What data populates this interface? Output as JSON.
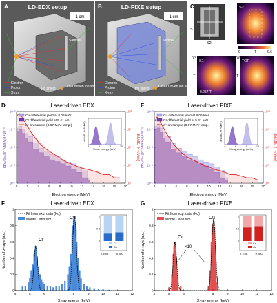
{
  "panels": {
    "A": {
      "letter": "A",
      "title": "LD-EDX setup",
      "scale_label": "1 cm",
      "labels": {
        "sample": "Sample",
        "shield": "Pb shield"
      },
      "legend": [
        "Electron",
        "Proton",
        "X-ray",
        "Laser driven ion source"
      ]
    },
    "B": {
      "letter": "B",
      "title": "LD-PIXE setup",
      "scale_label": "1 cm",
      "labels": {
        "sample": "Sample",
        "shield": "Pb shield"
      },
      "legend": [
        "Electron",
        "Proton",
        "X-ray",
        "Laser Driven ion source"
      ]
    },
    "C": {
      "letter": "C",
      "labels": {
        "s1": "S1",
        "s2": "S2",
        "s1_map": "S1",
        "top": "TOP",
        "t": "T"
      },
      "colorbar_ticks": [
        "0",
        "0.6"
      ],
      "s1_range": "0.257 T",
      "s1_axis": [
        "0.3",
        "T"
      ],
      "top_axis": [
        "0.6",
        "T"
      ]
    },
    "D": {
      "letter": "D",
      "title": "Laser-driven EDX",
      "legend": [
        "Cu differential yield at 8.05 keV",
        "Cr differential yield at 5.41 keV",
        "e⁻ on sample (0.67-MeV temp.)"
      ],
      "inset_xlabel": "X-ray energy (keV)",
      "inset_ylabel": "dNᵧ/dEₑ (h⁻¹/MeV)"
    },
    "E": {
      "letter": "E",
      "title": "Laser-driven PIXE",
      "legend": [
        "Cu differential yield at 8.05 keV",
        "Cr differential yield at 5.41 keV",
        "e⁻ on sample (0.67-MeV temp.)"
      ],
      "inset_xlabel": "X-ray energy (keV)",
      "inset_ylabel": "dNᵧ/dEₑ (h⁻¹/MeV)"
    },
    "F": {
      "letter": "F",
      "title": "Laser-driven EDX",
      "legend": [
        "Fit from exp. data (Kα)",
        "Monte Carlo sim."
      ],
      "peak_labels": [
        "Cr",
        "Cu"
      ],
      "inset_bar_labels": [
        "Cr",
        "Cu"
      ],
      "inset_ticks": [
        "p. Exp.",
        "p. MC"
      ]
    },
    "G": {
      "letter": "G",
      "title": "Laser-driven PIXE",
      "legend": [
        "Fit from exp. data (Kα)",
        "Monte Carlo sim."
      ],
      "peak_labels": [
        "Cr",
        "Cu"
      ],
      "factor": "×10",
      "inset_bar_labels": [
        "Cr",
        "Cu"
      ],
      "inset_ticks": [
        "p. Exp.",
        "p. MC"
      ]
    }
  },
  "chart_data": [
    {
      "id": "D",
      "type": "line",
      "title": "Laser-driven EDX",
      "xlabel": "Electron energy (MeV)",
      "ylabel_left": "(dNₓ/dEₑ)(h⁻¹/MeV) (×10⁻³)",
      "ylabel_right": "dNₑ/dEₑ (h⁻¹/MeV)",
      "xlim": [
        0,
        20
      ],
      "ylim_left": [
        1e-07,
        0.001
      ],
      "ylim_right": [
        1000000.0,
        10000000000.0
      ],
      "yscale": "log",
      "xticks": [
        "0",
        "2",
        "4",
        "6",
        "8",
        "10",
        "12",
        "14",
        "16",
        "18",
        "20"
      ],
      "yticks_left": [
        "10⁻⁷",
        "10⁻⁶",
        "10⁻⁵",
        "10⁻⁴",
        "10⁻³"
      ],
      "yticks_right": [
        "10⁶",
        "10⁷",
        "10⁸",
        "10⁹",
        "10¹⁰"
      ],
      "series": [
        {
          "name": "Cu differential yield at 8.05 keV",
          "color": "#a8a4e6",
          "x": [
            0.1,
            0.5,
            1,
            1.5,
            2,
            3,
            4,
            5,
            6,
            7,
            8,
            9,
            10,
            11,
            12,
            13
          ],
          "y": [
            0.00012,
            0.00015,
            0.0001,
            6e-05,
            4e-05,
            1.6e-05,
            9e-06,
            6e-06,
            4e-06,
            3e-06,
            2e-06,
            1.5e-06,
            1.2e-06,
            8e-07,
            5e-07,
            2e-07
          ]
        },
        {
          "name": "Cr differential yield at 5.41 keV",
          "color": "#6a3fb5",
          "x": [
            0.1,
            0.5,
            1,
            1.5,
            2,
            3,
            4,
            5,
            6,
            7,
            8,
            9,
            10,
            11,
            12,
            13
          ],
          "y": [
            8e-05,
            0.0001,
            6e-05,
            3e-05,
            2e-05,
            8e-06,
            5e-06,
            3e-06,
            2e-06,
            1.6e-06,
            1.2e-06,
            9e-07,
            6e-07,
            4e-07,
            2e-07,
            1.5e-07
          ]
        },
        {
          "name": "e⁻ on sample (0.67-MeV temp.)",
          "color": "#e02020",
          "x": [
            0.1,
            0.5,
            1,
            2,
            3,
            4,
            5,
            6,
            7,
            8,
            9,
            10,
            11,
            12,
            13,
            14,
            15,
            16,
            17,
            18,
            19
          ],
          "y": [
            6000000000.0,
            8000000000.0,
            5000000000.0,
            1500000000.0,
            500000000.0,
            200000000.0,
            100000000.0,
            60000000.0,
            40000000.0,
            25000000.0,
            16000000.0,
            12000000.0,
            9000000.0,
            7000000.0,
            6000000.0,
            5000000.0,
            4000000.0,
            3000000.0,
            3000000.0,
            2000000.0,
            2000000.0
          ]
        }
      ],
      "inset": {
        "xlim": [
          4,
          10
        ],
        "xticks": [
          "4",
          "6",
          "8",
          "10"
        ],
        "peaks_kev": [
          5.41,
          8.05
        ]
      }
    },
    {
      "id": "E",
      "type": "line",
      "title": "Laser-driven PIXE",
      "xlabel": "Electron energy (MeV)",
      "ylabel_left": "(dNₓ/dEₑ)(h⁻¹/MeV) (×10⁻³)",
      "ylabel_right": "dNₑ/dEₑ (h⁻¹/MeV)",
      "xlim": [
        0,
        20
      ],
      "ylim_left": [
        1e-07,
        0.001
      ],
      "ylim_right": [
        1000000.0,
        10000000000.0
      ],
      "yscale": "log",
      "xticks": [
        "0",
        "2",
        "4",
        "6",
        "8",
        "10",
        "12",
        "14",
        "16",
        "18",
        "20"
      ],
      "yticks_left": [
        "10⁻⁷",
        "10⁻⁶",
        "10⁻⁵",
        "10⁻⁴",
        "10⁻³"
      ],
      "yticks_right": [
        "10⁶",
        "10⁷",
        "10⁸",
        "10⁹",
        "10¹⁰"
      ],
      "series": [
        {
          "name": "Cu differential yield at 8.05 keV",
          "color": "#a8a4e6",
          "x": [
            0.1,
            0.5,
            1,
            1.5,
            2,
            3,
            4,
            5,
            6,
            7,
            8,
            9,
            10,
            11,
            12,
            13
          ],
          "y": [
            0.00015,
            0.0002,
            0.00012,
            7e-05,
            4e-05,
            1.6e-05,
            9e-06,
            6e-06,
            4e-06,
            3e-06,
            2e-06,
            1.5e-06,
            1.2e-06,
            8e-07,
            5e-07,
            2e-07
          ]
        },
        {
          "name": "Cr differential yield at 5.41 keV",
          "color": "#6a3fb5",
          "x": [
            0.1,
            0.5,
            1,
            1.5,
            2,
            3,
            4,
            5,
            6,
            7,
            8,
            9,
            10,
            11,
            12,
            13
          ],
          "y": [
            0.0001,
            0.00012,
            7e-05,
            3e-05,
            2e-05,
            8e-06,
            5e-06,
            3e-06,
            2e-06,
            1.6e-06,
            1.2e-06,
            9e-07,
            6e-07,
            4e-07,
            2e-07,
            1.5e-07
          ]
        },
        {
          "name": "e⁻ on sample (0.67-MeV temp.)",
          "color": "#e02020",
          "x": [
            0.1,
            0.5,
            1,
            2,
            3,
            4,
            5,
            6,
            7,
            8,
            9,
            10,
            11,
            12,
            13,
            14,
            15,
            16,
            17,
            18,
            19
          ],
          "y": [
            3000000000.0,
            5000000000.0,
            3000000000.0,
            800000000.0,
            250000000.0,
            100000000.0,
            50000000.0,
            30000000.0,
            20000000.0,
            15000000.0,
            10000000.0,
            8000000.0,
            6000000.0,
            5000000.0,
            4000000.0,
            3000000.0,
            3000000.0,
            2500000.0,
            2000000.0,
            2000000.0,
            1500000.0
          ]
        }
      ],
      "inset": {
        "xlim": [
          4,
          10
        ],
        "xticks": [
          "4",
          "6",
          "8",
          "10"
        ],
        "peaks_kev": [
          5.41,
          8.05
        ]
      }
    },
    {
      "id": "F",
      "type": "bar",
      "title": "Laser-driven EDX",
      "xlabel": "X-ray energy (keV)",
      "ylabel": "Number of x-rays (a.u.)",
      "xlim": [
        4,
        12
      ],
      "ylim": [
        0,
        1
      ],
      "xticks": [
        "4",
        "5",
        "6",
        "7",
        "8",
        "9",
        "10",
        "11",
        "12"
      ],
      "yticks": [
        "0",
        "0.2",
        "0.4",
        "0.6",
        "0.8",
        "1"
      ],
      "fit_peaks": [
        {
          "center": 5.41,
          "amp": 0.55,
          "sigma": 0.12
        },
        {
          "center": 8.05,
          "amp": 0.92,
          "sigma": 0.13
        }
      ],
      "mc_bins": {
        "x": [
          4.5,
          4.7,
          4.9,
          5.0,
          5.1,
          5.2,
          5.3,
          5.35,
          5.4,
          5.45,
          5.5,
          5.6,
          5.7,
          5.8,
          5.9,
          6.0,
          6.2,
          6.4,
          6.6,
          6.8,
          7.0,
          7.2,
          7.4,
          7.6,
          7.7,
          7.8,
          7.9,
          7.95,
          8.0,
          8.05,
          8.1,
          8.15,
          8.2,
          8.3,
          8.4,
          8.5,
          8.7,
          8.9,
          9.1,
          9.4,
          9.7,
          10.0,
          10.4
        ],
        "y": [
          0.05,
          0.06,
          0.1,
          0.16,
          0.25,
          0.32,
          0.45,
          0.5,
          0.55,
          0.52,
          0.42,
          0.3,
          0.2,
          0.14,
          0.1,
          0.08,
          0.06,
          0.05,
          0.04,
          0.05,
          0.06,
          0.08,
          0.12,
          0.2,
          0.3,
          0.45,
          0.7,
          0.8,
          0.88,
          0.92,
          0.85,
          0.75,
          0.6,
          0.4,
          0.25,
          0.15,
          0.08,
          0.05,
          0.04,
          0.03,
          0.02,
          0.02,
          0.01
        ]
      },
      "inset": {
        "type": "stacked-bar",
        "ylim": [
          0,
          1
        ],
        "yticks": [
          "0",
          "0.5",
          "1"
        ],
        "bars": [
          {
            "Cu": 0.3,
            "Cr": 0.7
          },
          {
            "Cu": 0.35,
            "Cr": 0.65
          }
        ]
      }
    },
    {
      "id": "G",
      "type": "bar",
      "title": "Laser-driven PIXE",
      "xlabel": "X-ray energy (keV)",
      "ylabel": "Number of x-rays (a.u.)",
      "xlim": [
        4,
        12
      ],
      "ylim": [
        0,
        1
      ],
      "xticks": [
        "4",
        "5",
        "6",
        "7",
        "8",
        "9",
        "10",
        "11",
        "12"
      ],
      "yticks": [
        "0",
        "0.2",
        "0.4",
        "0.6",
        "0.8",
        "1"
      ],
      "fit_peaks": [
        {
          "center": 5.41,
          "amp": 0.6,
          "sigma": 0.12
        },
        {
          "center": 8.05,
          "amp": 0.88,
          "sigma": 0.13
        }
      ],
      "mc_bins": {
        "x": [
          5.0,
          5.2,
          5.3,
          5.35,
          5.4,
          5.45,
          5.5,
          5.6,
          5.8,
          7.7,
          7.8,
          7.9,
          7.95,
          8.0,
          8.05,
          8.1,
          8.15,
          8.2,
          8.3
        ],
        "y": [
          0.04,
          0.2,
          0.45,
          0.55,
          0.6,
          0.5,
          0.4,
          0.2,
          0.05,
          0.06,
          0.25,
          0.6,
          0.75,
          0.82,
          0.88,
          0.78,
          0.6,
          0.35,
          0.1
        ]
      },
      "inset": {
        "type": "stacked-bar",
        "ylim": [
          0,
          1
        ],
        "yticks": [
          "0",
          "0.5",
          "1"
        ],
        "bars": [
          {
            "Cu": 0.55,
            "Cr": 0.45
          },
          {
            "Cu": 0.6,
            "Cr": 0.4
          }
        ]
      }
    }
  ]
}
